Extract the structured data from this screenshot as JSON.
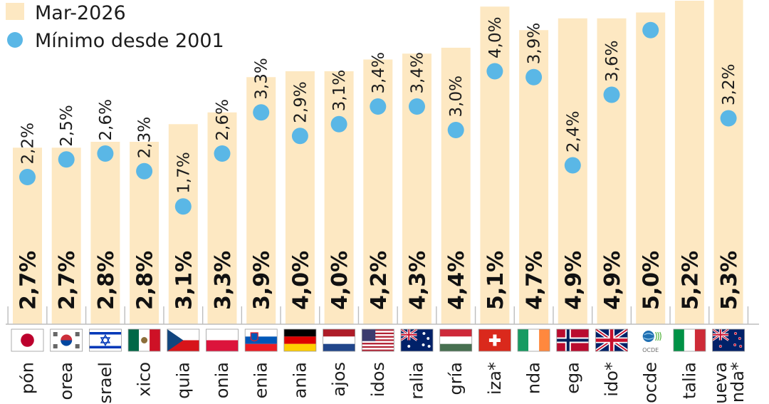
{
  "chart_data": {
    "type": "bar",
    "categories": [
      "Japón",
      "Corea",
      "Israel",
      "México",
      "Chequia",
      "Polonia",
      "Eslovenia",
      "Alemania",
      "Países Bajos",
      "Estados Unidos",
      "Australia",
      "Hungría",
      "Suiza*",
      "Irlanda",
      "Noruega",
      "Reino Unido*",
      "Ocde",
      "Italia",
      "Nueva Zelanda*"
    ],
    "category_labels_visible": [
      "pón",
      "orea",
      "srael",
      "xico",
      "quia",
      "onia",
      "enia",
      "ania",
      "ajos",
      "idos",
      "ralia",
      "gría",
      "iza*",
      "nda",
      "ega",
      "ido*",
      "ocde",
      "talia",
      "ueva\nanda*"
    ],
    "series": [
      {
        "name": "Mar-2026",
        "values": [
          2.7,
          2.7,
          2.8,
          2.8,
          3.1,
          3.3,
          3.9,
          4.0,
          4.0,
          4.2,
          4.3,
          4.4,
          5.1,
          4.7,
          4.9,
          4.9,
          5.0,
          5.2,
          5.3
        ],
        "labels": [
          "2,7%",
          "2,7%",
          "2,8%",
          "2,8%",
          "3,1%",
          "3,3%",
          "3,9%",
          "4,0%",
          "4,0%",
          "4,2%",
          "4,3%",
          "4,4%",
          "5,1%",
          "4,7%",
          "4,9%",
          "4,9%",
          "5,0%",
          "5,2%",
          "5,3%"
        ],
        "color": "#fde8c2"
      },
      {
        "name": "Mínimo desde 2001",
        "values": [
          2.2,
          2.5,
          2.6,
          2.3,
          1.7,
          2.6,
          3.3,
          2.9,
          3.1,
          3.4,
          3.4,
          3.0,
          4.0,
          3.9,
          2.4,
          3.6,
          4.7,
          null,
          3.2
        ],
        "labels": [
          "2,2%",
          "2,5%",
          "2,6%",
          "2,3%",
          "1,7%",
          "2,6%",
          "3,3%",
          "2,9%",
          "3,1%",
          "3,4%",
          "3,4%",
          "3,0%",
          "4,0%",
          "3,9%",
          "2,4%",
          "3,6%",
          "",
          "",
          "3,2%"
        ],
        "color": "#5ab7e6"
      }
    ],
    "flags": [
      "japan",
      "south-korea",
      "israel",
      "mexico",
      "czechia",
      "poland",
      "slovenia",
      "germany",
      "netherlands",
      "usa",
      "australia",
      "hungary",
      "switzerland",
      "ireland",
      "norway",
      "uk",
      "oecd",
      "italy",
      "new-zealand"
    ],
    "flag_caption_ocde": "OCDE",
    "ylim": [
      0,
      5.35
    ],
    "grid": false,
    "legend_position": "top-left"
  }
}
